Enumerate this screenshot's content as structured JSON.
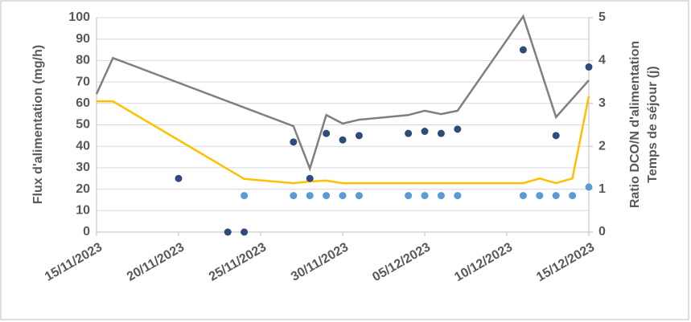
{
  "chart_data": {
    "type": "combo",
    "y_label": "Flux d'alimentation (mg/h)",
    "y2_labels": [
      "Ratio DCO/N d'alimentation",
      "Temps de séjour (j)"
    ],
    "xlim": [
      "15/11/2023",
      "15/12/2023"
    ],
    "xticks": [
      "15/11/2023",
      "20/11/2023",
      "25/11/2023",
      "30/11/2023",
      "05/12/2023",
      "10/12/2023",
      "15/12/2023"
    ],
    "ylim": [
      0,
      100
    ],
    "yticks": [
      0,
      10,
      20,
      30,
      40,
      50,
      60,
      70,
      80,
      90,
      100
    ],
    "y2lim": [
      0,
      5
    ],
    "y2ticks": [
      0,
      1,
      2,
      3,
      4,
      5
    ],
    "grid": true,
    "series": [
      {
        "type": "line",
        "axis": "y2",
        "color": "#7f7f7f",
        "x": [
          "15/11/2023",
          "16/11/2023",
          "27/11/2023",
          "28/11/2023",
          "29/11/2023",
          "30/11/2023",
          "01/12/2023",
          "04/12/2023",
          "05/12/2023",
          "06/12/2023",
          "07/12/2023",
          "11/12/2023",
          "13/12/2023",
          "15/12/2023"
        ],
        "values": [
          3.22,
          4.06,
          2.47,
          1.48,
          2.73,
          2.53,
          2.62,
          2.73,
          2.83,
          2.75,
          2.83,
          5.03,
          2.68,
          3.54
        ]
      },
      {
        "type": "line",
        "axis": "y2",
        "color": "#ffc000",
        "x": [
          "15/11/2023",
          "16/11/2023",
          "24/11/2023",
          "27/11/2023",
          "28/11/2023",
          "29/11/2023",
          "30/11/2023",
          "01/12/2023",
          "11/12/2023",
          "12/12/2023",
          "13/12/2023",
          "14/12/2023",
          "15/12/2023"
        ],
        "values": [
          3.05,
          3.05,
          1.24,
          1.14,
          1.18,
          1.2,
          1.14,
          1.14,
          1.14,
          1.25,
          1.14,
          1.25,
          3.17
        ]
      },
      {
        "type": "scatter",
        "color": "#2f4b7c",
        "x": [
          "20/11/2023",
          "23/11/2023",
          "24/11/2023",
          "27/11/2023",
          "28/11/2023",
          "29/11/2023",
          "30/11/2023",
          "01/12/2023",
          "04/12/2023",
          "05/12/2023",
          "06/12/2023",
          "07/12/2023",
          "11/12/2023",
          "13/12/2023",
          "15/12/2023"
        ],
        "values": [
          25,
          0,
          0,
          42,
          25,
          46,
          43,
          45,
          46,
          47,
          46,
          48,
          85,
          45,
          77
        ]
      },
      {
        "type": "scatter",
        "color": "#5b9bd5",
        "x": [
          "24/11/2023",
          "27/11/2023",
          "28/11/2023",
          "29/11/2023",
          "30/11/2023",
          "01/12/2023",
          "04/12/2023",
          "05/12/2023",
          "06/12/2023",
          "07/12/2023",
          "11/12/2023",
          "12/12/2023",
          "13/12/2023",
          "14/12/2023",
          "15/12/2023"
        ],
        "values": [
          17,
          17,
          17,
          17,
          17,
          17,
          17,
          17,
          17,
          17,
          17,
          17,
          17,
          17,
          21
        ]
      }
    ]
  }
}
